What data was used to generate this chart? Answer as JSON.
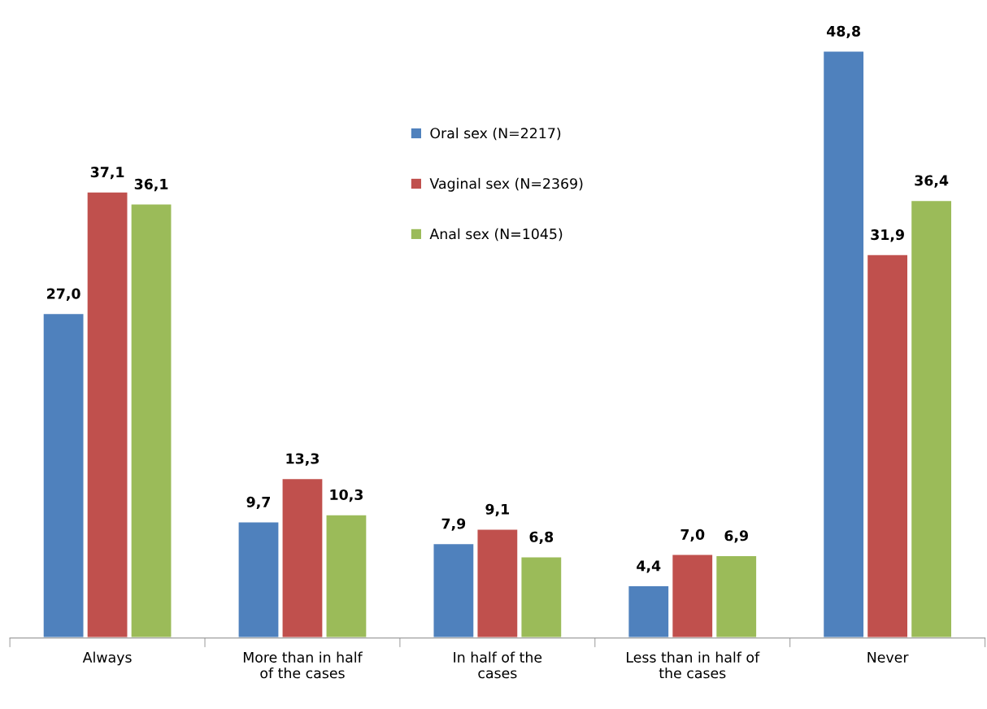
{
  "chart_data": {
    "type": "bar",
    "categories": [
      "Always",
      "More than in half\nof the cases",
      "In half of the\ncases",
      "Less than in half of\nthe cases",
      "Never"
    ],
    "series": [
      {
        "name": "Oral sex (N=2217)",
        "color": "#4f81bd",
        "values": [
          27.0,
          9.7,
          7.9,
          4.4,
          48.8
        ],
        "value_labels": [
          "27,0",
          "9,7",
          "7,9",
          "4,4",
          "48,8"
        ]
      },
      {
        "name": "Vaginal sex (N=2369)",
        "color": "#c0504d",
        "values": [
          37.1,
          13.3,
          9.1,
          7.0,
          31.9
        ],
        "value_labels": [
          "37,1",
          "13,3",
          "9,1",
          "7,0",
          "31,9"
        ]
      },
      {
        "name": "Anal sex (N=1045)",
        "color": "#9bbb59",
        "values": [
          36.1,
          10.3,
          6.8,
          6.9,
          36.4
        ],
        "value_labels": [
          "36,1",
          "10,3",
          "6,8",
          "6,9",
          "36,4"
        ]
      }
    ],
    "tick_labels": "x",
    "legend": "top",
    "grid": false
  }
}
